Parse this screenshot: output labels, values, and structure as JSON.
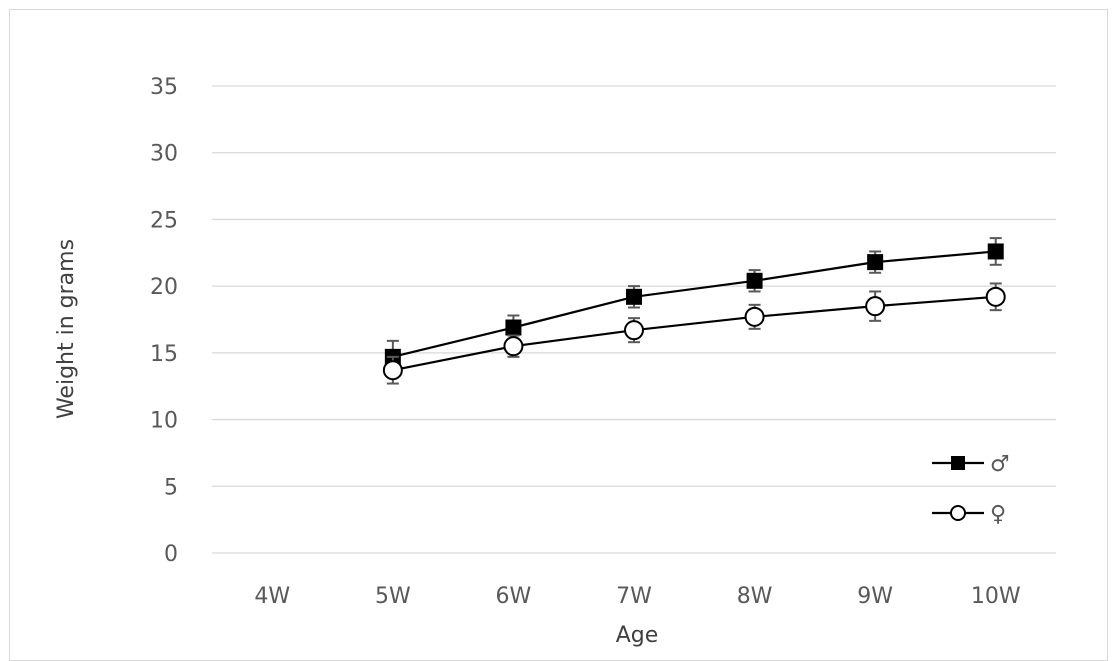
{
  "chart_data": {
    "type": "line",
    "title": "",
    "xlabel": "Age",
    "ylabel": "Weight in grams",
    "categories": [
      "4W",
      "5W",
      "6W",
      "7W",
      "8W",
      "9W",
      "10W"
    ],
    "ylim": [
      0,
      35
    ],
    "yticks": [
      0,
      5,
      10,
      15,
      20,
      25,
      30,
      35
    ],
    "grid": true,
    "legend_position": "bottom-right",
    "series": [
      {
        "name": "♂",
        "marker": "square-filled",
        "color": "#000000",
        "values": [
          null,
          14.7,
          16.9,
          19.2,
          20.4,
          21.8,
          22.6
        ],
        "error": [
          null,
          1.2,
          0.9,
          0.8,
          0.8,
          0.8,
          1.0
        ]
      },
      {
        "name": "♀",
        "marker": "circle-open",
        "color": "#000000",
        "values": [
          null,
          13.7,
          15.5,
          16.7,
          17.7,
          18.5,
          19.2
        ],
        "error": [
          null,
          1.0,
          0.8,
          0.9,
          0.9,
          1.1,
          1.0
        ]
      }
    ]
  }
}
